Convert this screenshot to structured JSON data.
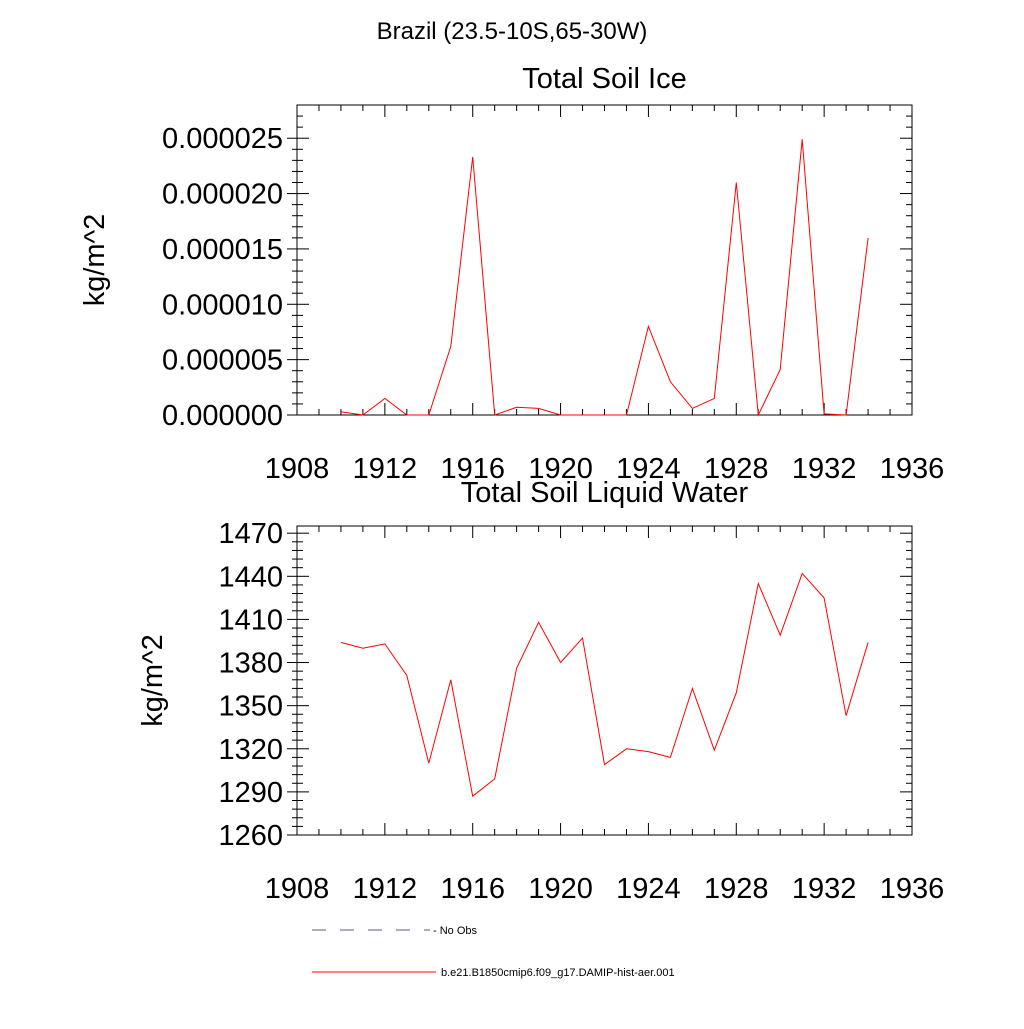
{
  "suptitle": "Brazil (23.5-10S,65-30W)",
  "colors": {
    "model_line": "#ff0000",
    "obs_line": "#5a5a8a",
    "axis": "#000000"
  },
  "legend": {
    "obs_label": "- No Obs",
    "model_label": "b.e21.B1850cmip6.f09_g17.DAMIP-hist-aer.001"
  },
  "chart_data": [
    {
      "type": "line",
      "title": "Total Soil Ice",
      "xlabel": "",
      "ylabel": "kg/m^2",
      "xlim": [
        1908,
        1936
      ],
      "ylim": [
        0.0,
        2.8e-05
      ],
      "xticks": [
        "1908",
        "1912",
        "1916",
        "1920",
        "1924",
        "1928",
        "1932",
        "1936"
      ],
      "yticks": [
        "0.000000",
        "0.000005",
        "0.000010",
        "0.000015",
        "0.000020",
        "0.000025"
      ],
      "grid": false,
      "series": [
        {
          "name": "b.e21.B1850cmip6.f09_g17.DAMIP-hist-aer.001",
          "x": [
            1910,
            1911,
            1912,
            1913,
            1914,
            1915,
            1916,
            1917,
            1918,
            1919,
            1920,
            1921,
            1922,
            1923,
            1924,
            1925,
            1926,
            1927,
            1928,
            1929,
            1930,
            1931,
            1932,
            1933,
            1934
          ],
          "values": [
            3e-07,
            0.0,
            1.5e-06,
            0.0,
            0.0,
            6.2e-06,
            2.33e-05,
            0.0,
            7e-07,
            6e-07,
            0.0,
            0.0,
            0.0,
            0.0,
            8e-06,
            3e-06,
            6e-07,
            1.5e-06,
            2.1e-05,
            0.0,
            4.1e-06,
            2.49e-05,
            1e-07,
            0.0,
            1.6e-05
          ]
        }
      ]
    },
    {
      "type": "line",
      "title": "Total Soil Liquid Water",
      "xlabel": "",
      "ylabel": "kg/m^2",
      "xlim": [
        1908,
        1936
      ],
      "ylim": [
        1260,
        1475
      ],
      "xticks": [
        "1908",
        "1912",
        "1916",
        "1920",
        "1924",
        "1928",
        "1932",
        "1936"
      ],
      "yticks": [
        "1260",
        "1290",
        "1320",
        "1350",
        "1380",
        "1410",
        "1440",
        "1470"
      ],
      "grid": false,
      "series": [
        {
          "name": "b.e21.B1850cmip6.f09_g17.DAMIP-hist-aer.001",
          "x": [
            1910,
            1911,
            1912,
            1913,
            1914,
            1915,
            1916,
            1917,
            1918,
            1919,
            1920,
            1921,
            1922,
            1923,
            1924,
            1925,
            1926,
            1927,
            1928,
            1929,
            1930,
            1931,
            1932,
            1933,
            1934
          ],
          "values": [
            1394,
            1390,
            1393,
            1371,
            1310,
            1368,
            1287,
            1299,
            1376,
            1408,
            1380,
            1397,
            1309,
            1320,
            1318,
            1314,
            1362,
            1319,
            1359,
            1435,
            1399,
            1442,
            1425,
            1343,
            1394
          ]
        }
      ]
    }
  ]
}
